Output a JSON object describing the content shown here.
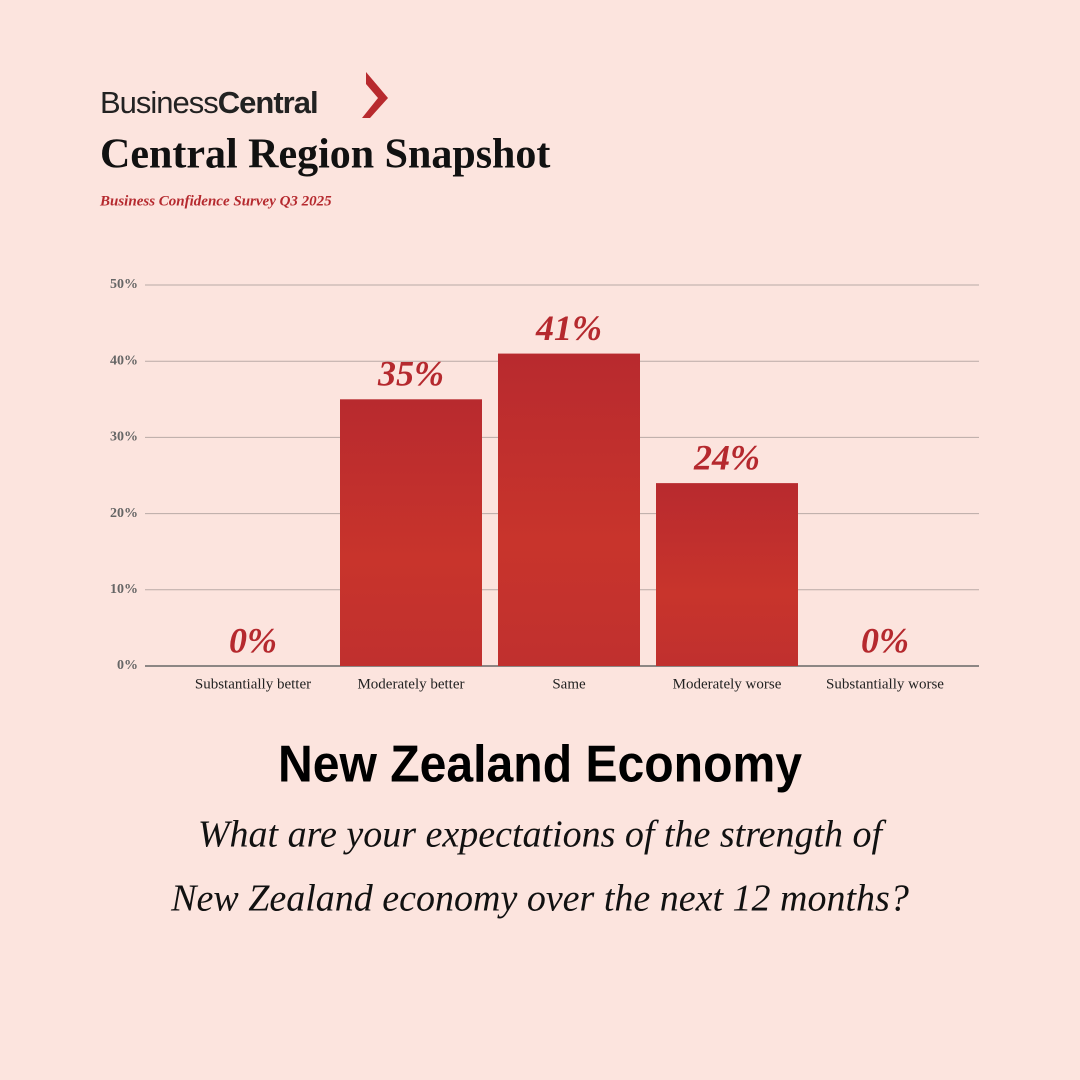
{
  "brand": [
    "Business",
    "Central"
  ],
  "title": "Central Region Snapshot",
  "subtitle": "Business Confidence Survey Q3 2025",
  "chart_data": {
    "type": "bar",
    "categories": [
      "Substantially better",
      "Moderately better",
      "Same",
      "Moderately worse",
      "Substantially worse"
    ],
    "values": [
      0,
      35,
      41,
      24,
      0
    ],
    "value_labels": [
      "0%",
      "35%",
      "41%",
      "24%",
      "0%"
    ],
    "color": "#b82a2e",
    "ylim": [
      0,
      50
    ],
    "yticks": [
      {
        "value": 0,
        "label": "0%"
      },
      {
        "value": 10,
        "label": "10%"
      },
      {
        "value": 20,
        "label": "20%"
      },
      {
        "value": 30,
        "label": "30%"
      },
      {
        "value": 40,
        "label": "40%"
      },
      {
        "value": 50,
        "label": "50%"
      }
    ],
    "grid": true
  },
  "heading": "New Zealand Economy",
  "question": [
    "What are your expectations of the strength of",
    "New Zealand economy over the next 12 months?"
  ]
}
